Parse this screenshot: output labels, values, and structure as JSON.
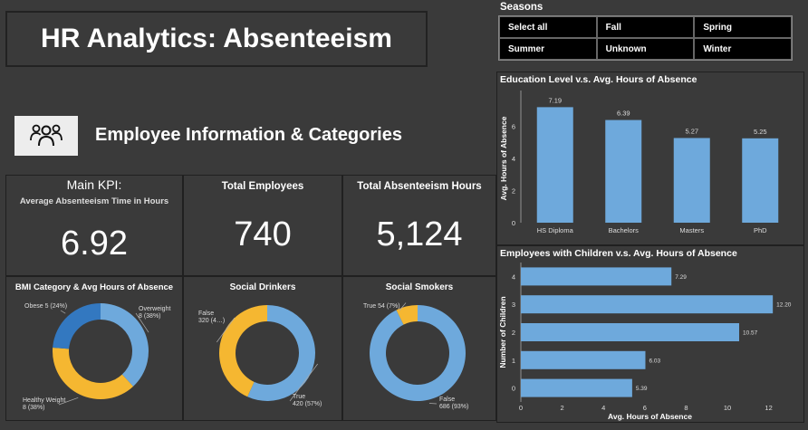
{
  "header": {
    "title": "HR Analytics: Absenteeism"
  },
  "section": {
    "title": "Employee Information & Categories",
    "icon": "people-group-icon"
  },
  "kpis": {
    "main": {
      "label": "Main KPI:",
      "sublabel": "Average Absenteeism Time in Hours",
      "value": "6.92"
    },
    "employees": {
      "label": "Total Employees",
      "value": "740"
    },
    "hours": {
      "label": "Total Absenteeism Hours",
      "value": "5,124"
    }
  },
  "seasons": {
    "label": "Seasons",
    "options": [
      "Select all",
      "Fall",
      "Spring",
      "Summer",
      "Unknown",
      "Winter"
    ]
  },
  "colors": {
    "blue": "#6ea9dc",
    "yellow": "#f5b731",
    "darkblue": "#3378c0"
  },
  "chart_data": [
    {
      "type": "pie",
      "title": "BMI Category & Avg Hours of Absence",
      "slices": [
        {
          "name": "Overweight",
          "label": "Overweight\n8 (38%)",
          "value": 8,
          "color": "#6ea9dc"
        },
        {
          "name": "Healthy Weight",
          "label": "Healthy Weight\n8 (38%)",
          "value": 8,
          "color": "#f5b731"
        },
        {
          "name": "Obese",
          "label": "Obese 5 (24%)",
          "value": 5,
          "color": "#3378c0"
        }
      ]
    },
    {
      "type": "pie",
      "title": "Social Drinkers",
      "slices": [
        {
          "name": "True",
          "label": "True\n420 (57%)",
          "value": 420,
          "color": "#6ea9dc"
        },
        {
          "name": "False",
          "label": "False\n320 (4…)",
          "value": 320,
          "color": "#f5b731"
        }
      ]
    },
    {
      "type": "pie",
      "title": "Social Smokers",
      "slices": [
        {
          "name": "False",
          "label": "False\n686 (93%)",
          "value": 686,
          "color": "#6ea9dc"
        },
        {
          "name": "True",
          "label": "True 54 (7%)",
          "value": 54,
          "color": "#f5b731"
        }
      ]
    },
    {
      "type": "bar",
      "title": "Education Level v.s. Avg. Hours of Absence",
      "categories": [
        "HS Diploma",
        "Bachelors",
        "Masters",
        "PhD"
      ],
      "values": [
        7.19,
        6.39,
        5.27,
        5.25
      ],
      "value_labels": [
        "7.19",
        "6.39",
        "5.27",
        "5.25"
      ],
      "ylabel": "Avg. Hours of Absence",
      "ylim": [
        0,
        8
      ],
      "yticks": [
        "0",
        "2",
        "4",
        "6"
      ]
    },
    {
      "type": "bar",
      "orientation": "horizontal",
      "title": "Employees with Children v.s. Avg. Hours of Absence",
      "categories": [
        "4",
        "3",
        "2",
        "1",
        "0"
      ],
      "values": [
        7.29,
        12.2,
        10.57,
        6.03,
        5.39
      ],
      "value_labels": [
        "7.29",
        "12.20",
        "10.57",
        "6.03",
        "5.39"
      ],
      "xlabel": "Avg. Hours of Absence",
      "ylabel": "Number of Children",
      "xlim": [
        0,
        12.5
      ],
      "xticks": [
        "0",
        "2",
        "4",
        "6",
        "8",
        "10",
        "12"
      ]
    }
  ]
}
